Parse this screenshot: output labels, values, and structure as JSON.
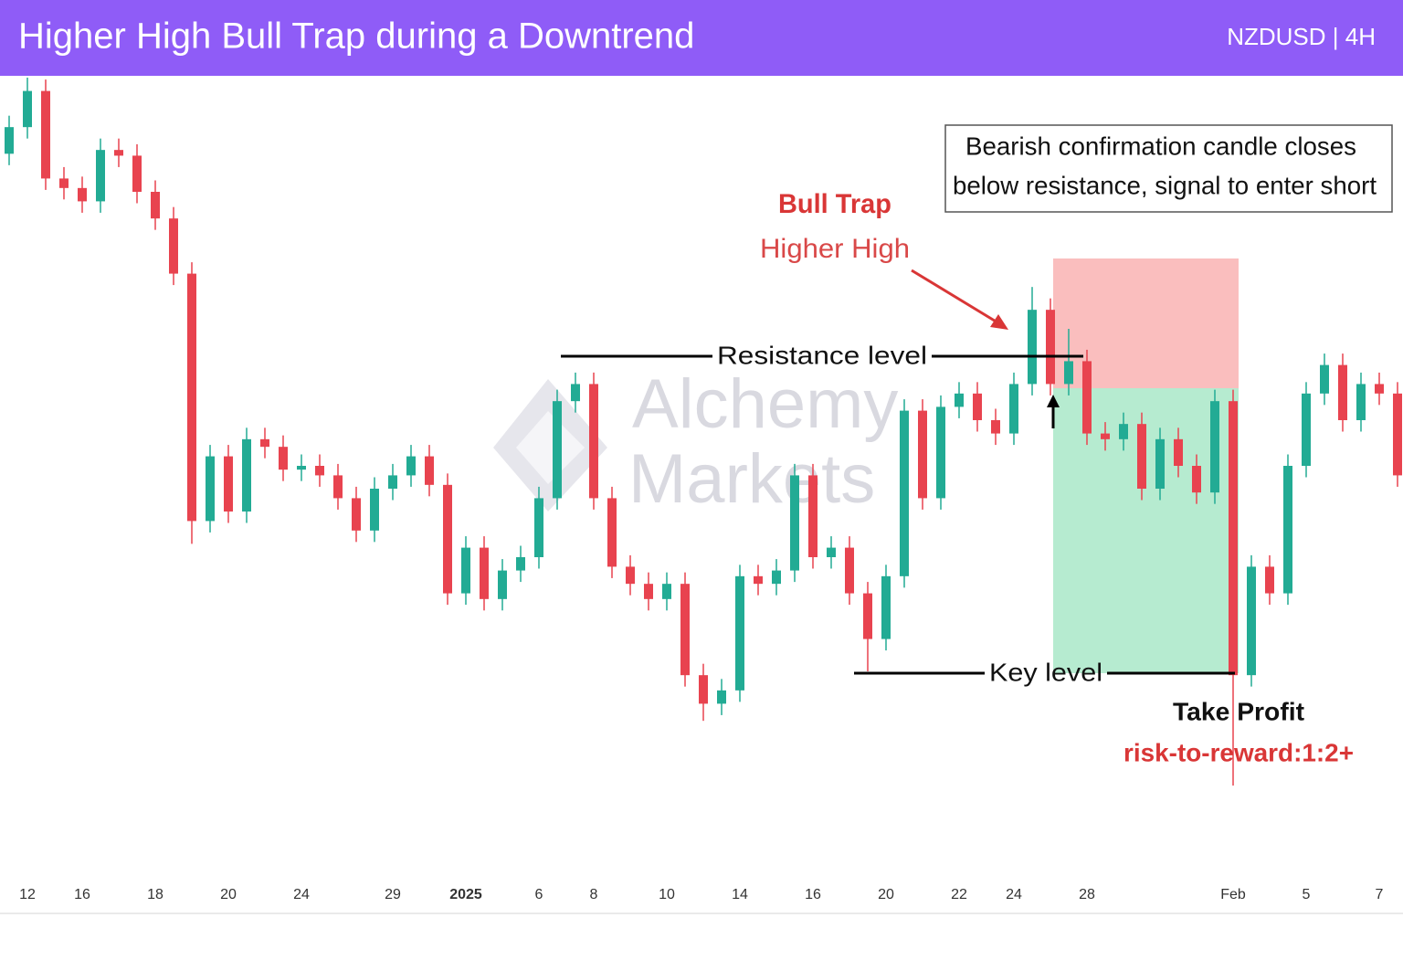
{
  "header": {
    "title": "Higher High Bull Trap during a Downtrend",
    "symbol": "NZDUSD | 4H"
  },
  "watermark": [
    "Alchemy",
    "Markets"
  ],
  "chart_data": {
    "type": "candlestick",
    "categories": [
      null,
      "12",
      null,
      null,
      "16",
      null,
      null,
      null,
      "18",
      null,
      null,
      null,
      "20",
      null,
      null,
      null,
      "24",
      null,
      null,
      null,
      null,
      "29",
      null,
      null,
      null,
      "2025",
      null,
      null,
      null,
      "6",
      null,
      null,
      "8",
      null,
      null,
      null,
      "10",
      null,
      null,
      null,
      "14",
      null,
      null,
      null,
      "16",
      null,
      null,
      null,
      "20",
      null,
      null,
      null,
      "22",
      null,
      null,
      "24",
      null,
      null,
      null,
      "28",
      null,
      null,
      null,
      null,
      null,
      null,
      null,
      "Feb",
      null,
      null,
      null,
      "5",
      null,
      null,
      null,
      "7",
      null
    ],
    "open": [
      0.586,
      0.5874,
      0.5893,
      0.5847,
      0.5842,
      0.5835,
      0.5862,
      0.5859,
      0.584,
      0.5826,
      0.5797,
      0.5667,
      0.5701,
      0.5672,
      0.571,
      0.5706,
      0.5694,
      0.5696,
      0.5691,
      0.5679,
      0.5662,
      0.5684,
      0.5691,
      0.5701,
      0.5686,
      0.5629,
      0.5653,
      0.5626,
      0.5641,
      0.5648,
      0.5679,
      0.573,
      0.5739,
      0.5679,
      0.5643,
      0.5634,
      0.5626,
      0.5634,
      0.5586,
      0.5571,
      0.5578,
      0.5638,
      0.5634,
      0.5641,
      0.5691,
      0.5648,
      0.5653,
      0.5629,
      0.5605,
      0.5638,
      0.5725,
      0.5679,
      0.5727,
      0.5734,
      0.572,
      0.5713,
      0.5739,
      0.5778,
      0.5739,
      0.5751,
      0.5713,
      0.571,
      0.5718,
      0.5684,
      0.571,
      0.5696,
      0.5682,
      0.573,
      0.5586,
      0.5643,
      0.5629,
      0.5696,
      0.5734,
      0.5749,
      0.572,
      0.5739,
      0.5734
    ],
    "high": [
      0.588,
      0.59,
      0.5899,
      0.5853,
      0.5848,
      0.5868,
      0.5868,
      0.5865,
      0.5846,
      0.5832,
      0.5803,
      0.5707,
      0.5707,
      0.5716,
      0.5716,
      0.5712,
      0.5702,
      0.5702,
      0.5697,
      0.5685,
      0.569,
      0.5697,
      0.5707,
      0.5707,
      0.5692,
      0.5659,
      0.5659,
      0.5647,
      0.5654,
      0.5685,
      0.5736,
      0.5745,
      0.5745,
      0.5685,
      0.5649,
      0.564,
      0.564,
      0.564,
      0.5592,
      0.5584,
      0.5644,
      0.5644,
      0.5647,
      0.5697,
      0.5697,
      0.5659,
      0.5659,
      0.5635,
      0.5644,
      0.5731,
      0.5731,
      0.5733,
      0.574,
      0.574,
      0.5726,
      0.5745,
      0.579,
      0.5784,
      0.5768,
      0.5757,
      0.5719,
      0.5724,
      0.5724,
      0.5716,
      0.5716,
      0.5702,
      0.5736,
      0.5736,
      0.5649,
      0.5649,
      0.5702,
      0.574,
      0.5755,
      0.5755,
      0.5745,
      0.5745,
      0.574
    ],
    "low": [
      0.5854,
      0.5868,
      0.5841,
      0.5836,
      0.5829,
      0.5829,
      0.5853,
      0.5834,
      0.582,
      0.5791,
      0.5655,
      0.5661,
      0.5666,
      0.5666,
      0.57,
      0.5688,
      0.5688,
      0.5685,
      0.5673,
      0.5656,
      0.5656,
      0.5678,
      0.5685,
      0.568,
      0.5623,
      0.5623,
      0.562,
      0.562,
      0.5635,
      0.5642,
      0.5673,
      0.5724,
      0.5673,
      0.5637,
      0.5628,
      0.562,
      0.562,
      0.558,
      0.5562,
      0.5565,
      0.5572,
      0.5628,
      0.5628,
      0.5635,
      0.5642,
      0.5642,
      0.5623,
      0.5588,
      0.5599,
      0.5632,
      0.5673,
      0.5673,
      0.5721,
      0.5714,
      0.5707,
      0.5707,
      0.5733,
      0.5733,
      0.5733,
      0.5707,
      0.5704,
      0.5704,
      0.5678,
      0.5678,
      0.569,
      0.5676,
      0.5676,
      0.5528,
      0.558,
      0.5623,
      0.5623,
      0.569,
      0.5728,
      0.5714,
      0.5714,
      0.5728,
      0.5685
    ],
    "close": [
      0.5874,
      0.5893,
      0.5847,
      0.5842,
      0.5835,
      0.5862,
      0.5859,
      0.584,
      0.5826,
      0.5797,
      0.5667,
      0.5701,
      0.5672,
      0.571,
      0.5706,
      0.5694,
      0.5696,
      0.5691,
      0.5679,
      0.5662,
      0.5684,
      0.5691,
      0.5701,
      0.5686,
      0.5629,
      0.5653,
      0.5626,
      0.5641,
      0.5648,
      0.5679,
      0.573,
      0.5739,
      0.5679,
      0.5643,
      0.5634,
      0.5626,
      0.5634,
      0.5586,
      0.5571,
      0.5578,
      0.5638,
      0.5634,
      0.5641,
      0.5691,
      0.5648,
      0.5653,
      0.5629,
      0.5605,
      0.5638,
      0.5725,
      0.5679,
      0.5727,
      0.5734,
      0.572,
      0.5713,
      0.5739,
      0.5778,
      0.5739,
      0.5751,
      0.5713,
      0.571,
      0.5718,
      0.5684,
      0.571,
      0.5696,
      0.5682,
      0.573,
      0.5586,
      0.5643,
      0.5629,
      0.5696,
      0.5734,
      0.5749,
      0.572,
      0.5739,
      0.5734,
      0.5691
    ],
    "up_color": "#22ab94",
    "down_color": "#e8434f",
    "ylim": [
      0.548,
      0.59
    ],
    "annotations": {
      "confirmation": [
        "Bearish confirmation candle closes",
        "below resistance, signal to enter short"
      ],
      "bull_trap": "Bull Trap",
      "higher_high": "Higher High",
      "resistance": "Resistance level",
      "key_level": "Key level",
      "take_profit": "Take Profit",
      "risk_reward": "risk-to-reward:1:2+"
    }
  }
}
